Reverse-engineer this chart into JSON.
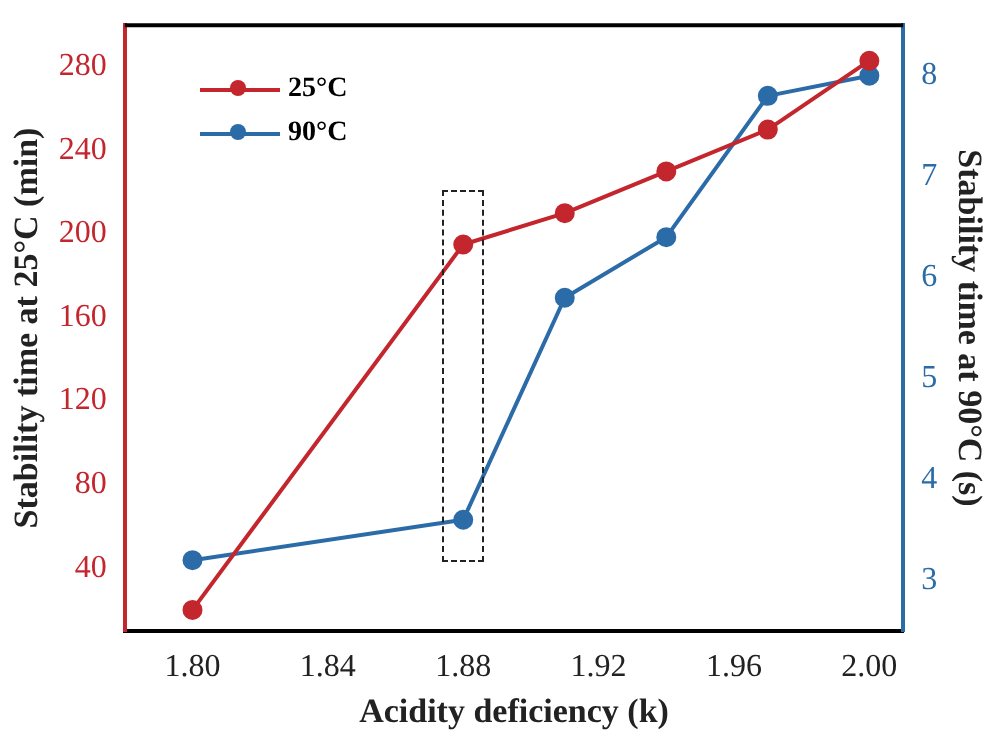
{
  "chart_data": {
    "type": "line",
    "xlabel": "Acidity deficiency (k)",
    "ylabel": "Stability time at 25°C (min)",
    "y2label": "Stability time at 90°C (s)",
    "x": [
      1.8,
      1.88,
      1.91,
      1.94,
      1.97,
      2.0
    ],
    "series": [
      {
        "name": "25°C",
        "color": "#c4262e",
        "values": [
          20,
          195,
          210,
          230,
          250,
          283
        ]
      },
      {
        "name": "90°C",
        "color": "#2b6ca8",
        "values": [
          3.2,
          3.6,
          5.8,
          6.4,
          7.8,
          8.0
        ],
        "axis": "y2"
      }
    ],
    "xlim": [
      1.78,
      2.01
    ],
    "xticks": [
      {
        "value": 1.8,
        "label": "1.80"
      },
      1.84,
      1.88,
      1.92,
      1.96,
      {
        "value": 2.0,
        "label": "2.00"
      }
    ],
    "ylim": [
      10,
      300
    ],
    "yticks": [
      40,
      80,
      120,
      160,
      200,
      240,
      280
    ],
    "y2lim": [
      2.5,
      8.5
    ],
    "y2ticks": [
      3,
      4,
      5,
      6,
      7,
      8
    ],
    "grid": false,
    "legend": "top left",
    "marker": "circle",
    "line_style": "solid"
  }
}
